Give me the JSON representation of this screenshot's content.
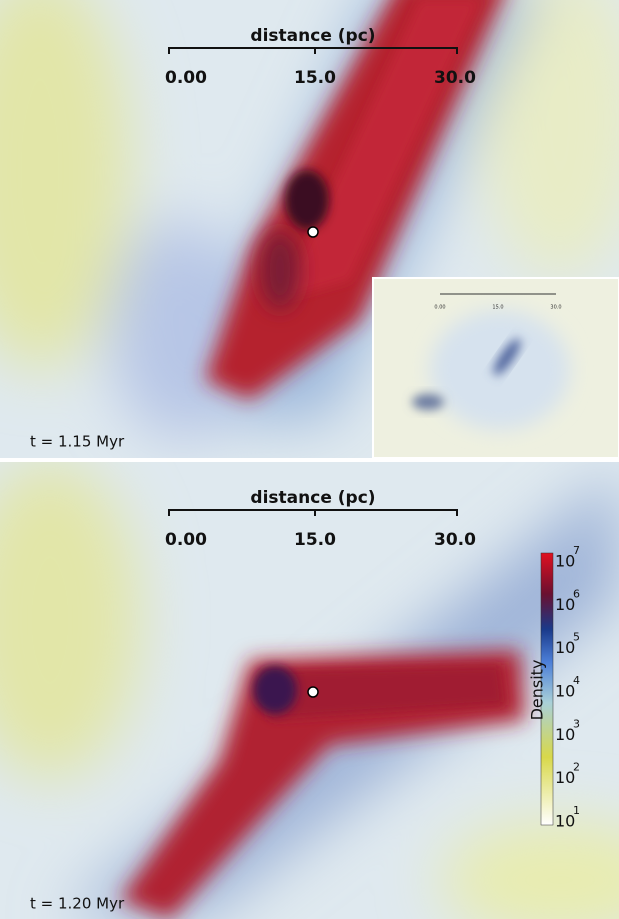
{
  "panels": [
    {
      "scale_bar": {
        "label": "distance (pc)",
        "ticks": [
          "0.00",
          "15.0",
          "30.0"
        ]
      },
      "inset": {
        "ticks": [
          "0.00",
          "15.0",
          "30.0"
        ]
      },
      "time": "t = 1.15 Myr"
    },
    {
      "scale_bar": {
        "label": "distance (pc)",
        "ticks": [
          "0.00",
          "15.0",
          "30.0"
        ]
      },
      "time": "t = 1.20 Myr",
      "colorbar": {
        "label": "Density",
        "ticks": [
          {
            "base": "10",
            "exponent": "7"
          },
          {
            "base": "10",
            "exponent": "6"
          },
          {
            "base": "10",
            "exponent": "5"
          },
          {
            "base": "10",
            "exponent": "4"
          },
          {
            "base": "10",
            "exponent": "3"
          },
          {
            "base": "10",
            "exponent": "2"
          },
          {
            "base": "10",
            "exponent": "1"
          }
        ]
      }
    }
  ]
}
